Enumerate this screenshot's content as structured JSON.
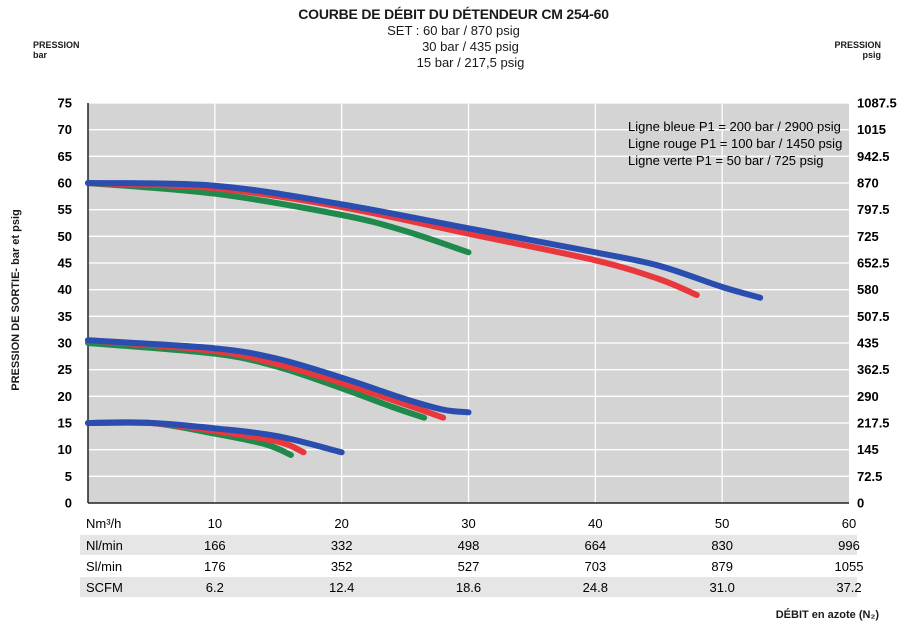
{
  "chart_data": {
    "type": "line",
    "title": "COURBE DE DÉBIT DU DÉTENDEUR CM 254-60",
    "subtitle": [
      "SET : 60 bar / 870 psig",
      "30 bar / 435 psig",
      "15 bar / 217,5 psig"
    ],
    "left_axis_header": [
      "PRESSION",
      "bar"
    ],
    "right_axis_header": [
      "PRESSION",
      "psig"
    ],
    "ylabel": "PRESSION DE SORTIE- bar et psig",
    "xlabel": "DÉBIT en azote (N₂)",
    "x_unit_label": "Nm³/h",
    "xlim": [
      0,
      60
    ],
    "ylim": [
      0,
      75
    ],
    "x_ticks": [
      "10",
      "20",
      "30",
      "40",
      "50",
      "60"
    ],
    "y_ticks_bar": [
      "0",
      "5",
      "10",
      "15",
      "20",
      "25",
      "30",
      "35",
      "40",
      "45",
      "50",
      "55",
      "60",
      "65",
      "70",
      "75"
    ],
    "y_ticks_psig": [
      "0",
      "72.5",
      "145",
      "217.5",
      "290",
      "362.5",
      "435",
      "507.5",
      "580",
      "652.5",
      "725",
      "797.5",
      "870",
      "942.5",
      "1015",
      "1087.5"
    ],
    "grid": true,
    "legend_position": "top-right",
    "legend": [
      "Ligne bleue P1 = 200 bar / 2900 psig",
      "Ligne rouge P1 = 100 bar / 1450 psig",
      "Ligne verte P1 = 50 bar / 725 psig"
    ],
    "colors": {
      "blue": "#2a4db0",
      "red": "#e8383d",
      "green": "#1f8a4c",
      "plot_bg": "#d4d4d4",
      "grid": "#ffffff",
      "band": "#e6e6e6"
    },
    "series": [
      {
        "color": "blue",
        "set": 60,
        "x": [
          0,
          10,
          20,
          30,
          40,
          45,
          50,
          53
        ],
        "y": [
          60,
          59.5,
          56,
          51.5,
          47,
          44.5,
          40.5,
          38.5
        ]
      },
      {
        "color": "red",
        "set": 60,
        "x": [
          0,
          10,
          20,
          30,
          40,
          45,
          48
        ],
        "y": [
          60,
          59,
          55.5,
          50.5,
          45.5,
          42,
          39
        ]
      },
      {
        "color": "green",
        "set": 60,
        "x": [
          0,
          10,
          20,
          25,
          30
        ],
        "y": [
          60,
          58,
          54,
          51,
          47
        ]
      },
      {
        "color": "blue",
        "set": 30,
        "x": [
          0,
          10,
          15,
          20,
          25,
          28,
          30
        ],
        "y": [
          30.5,
          29,
          27,
          23.5,
          19.5,
          17.5,
          17
        ]
      },
      {
        "color": "red",
        "set": 30,
        "x": [
          0,
          10,
          15,
          20,
          25,
          28
        ],
        "y": [
          30.5,
          28.5,
          26,
          22.5,
          18.5,
          16
        ]
      },
      {
        "color": "green",
        "set": 30,
        "x": [
          0,
          10,
          15,
          20,
          24,
          26.5
        ],
        "y": [
          30,
          28,
          25.5,
          21.5,
          18,
          16
        ]
      },
      {
        "color": "blue",
        "set": 15,
        "x": [
          0,
          5,
          10,
          15,
          20
        ],
        "y": [
          15,
          15,
          14,
          12.5,
          9.5
        ]
      },
      {
        "color": "red",
        "set": 15,
        "x": [
          0,
          5,
          10,
          15,
          17
        ],
        "y": [
          15,
          15,
          13.5,
          11.5,
          9.5
        ]
      },
      {
        "color": "green",
        "set": 15,
        "x": [
          0,
          5,
          10,
          14,
          16
        ],
        "y": [
          15,
          15,
          13,
          11,
          9
        ]
      }
    ],
    "flow_table": [
      {
        "label": "Nl/min",
        "values": [
          "166",
          "332",
          "498",
          "664",
          "830",
          "996"
        ]
      },
      {
        "label": "Sl/min",
        "values": [
          "176",
          "352",
          "527",
          "703",
          "879",
          "1055"
        ]
      },
      {
        "label": "SCFM",
        "values": [
          "6.2",
          "12.4",
          "18.6",
          "24.8",
          "31.0",
          "37.2"
        ]
      }
    ]
  }
}
